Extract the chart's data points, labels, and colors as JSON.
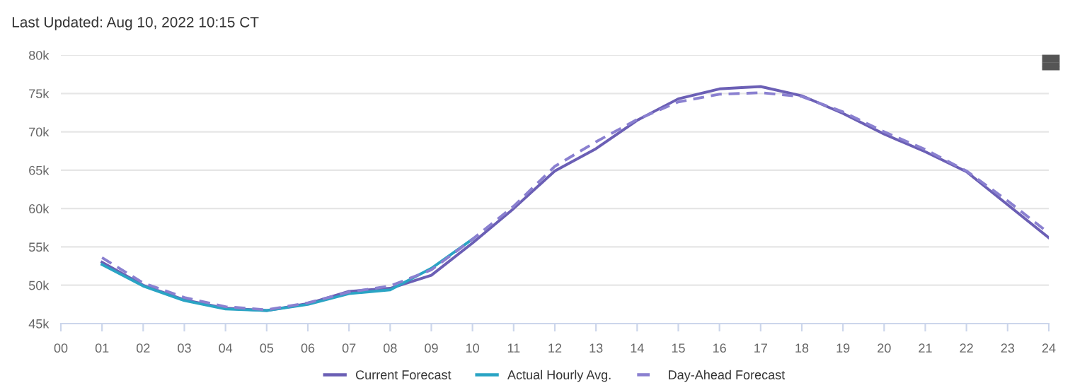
{
  "chart_data": {
    "type": "line",
    "title": "Last Updated: Aug 10, 2022 10:15 CT",
    "x": [
      1,
      2,
      3,
      4,
      5,
      6,
      7,
      8,
      9,
      10,
      11,
      12,
      13,
      14,
      15,
      16,
      17,
      18,
      19,
      20,
      21,
      22,
      23,
      24
    ],
    "series": [
      {
        "name": "Current Forecast",
        "color": "#6b5fb5",
        "line_style": "solid",
        "values": [
          53.0,
          50.0,
          48.1,
          47.0,
          46.7,
          47.6,
          49.2,
          49.6,
          51.3,
          55.5,
          60.0,
          64.9,
          67.8,
          71.5,
          74.3,
          75.6,
          75.9,
          74.7,
          72.4,
          69.7,
          67.4,
          64.8,
          60.5,
          56.2
        ]
      },
      {
        "name": "Actual Hourly Avg.",
        "color": "#2aa4c4",
        "line_style": "solid",
        "values": [
          52.7,
          49.9,
          48.0,
          46.9,
          46.7,
          47.5,
          48.9,
          49.4,
          52.2,
          56.0,
          null,
          null,
          null,
          null,
          null,
          null,
          null,
          null,
          null,
          null,
          null,
          null,
          null,
          null
        ]
      },
      {
        "name": "Day-Ahead Forecast",
        "color": "#8a80d0",
        "line_style": "dashed",
        "values": [
          53.6,
          50.3,
          48.4,
          47.2,
          46.8,
          47.7,
          49.1,
          49.9,
          52.0,
          56.0,
          60.3,
          65.5,
          68.7,
          71.6,
          73.9,
          74.9,
          75.1,
          74.6,
          72.6,
          70.0,
          67.7,
          64.9,
          61.0,
          56.8
        ]
      }
    ],
    "xlim": [
      0,
      24
    ],
    "xticks": [
      {
        "value": 0,
        "label": "00"
      },
      {
        "value": 1,
        "label": "01"
      },
      {
        "value": 2,
        "label": "02"
      },
      {
        "value": 3,
        "label": "03"
      },
      {
        "value": 4,
        "label": "04"
      },
      {
        "value": 5,
        "label": "05"
      },
      {
        "value": 6,
        "label": "06"
      },
      {
        "value": 7,
        "label": "07"
      },
      {
        "value": 8,
        "label": "08"
      },
      {
        "value": 9,
        "label": "09"
      },
      10,
      11,
      12,
      13,
      14,
      15,
      16,
      17,
      18,
      19,
      20,
      21,
      22,
      23,
      24
    ],
    "ylim": [
      45,
      80
    ],
    "yticks": [
      {
        "value": 45,
        "label": "45k"
      },
      {
        "value": 50,
        "label": "50k"
      },
      {
        "value": 55,
        "label": "55k"
      },
      {
        "value": 60,
        "label": "60k"
      },
      {
        "value": 65,
        "label": "65k"
      },
      {
        "value": 70,
        "label": "70k"
      },
      {
        "value": 75,
        "label": "75k"
      },
      {
        "value": 80,
        "label": "80k"
      }
    ],
    "grid": "y",
    "legend": "bottom"
  }
}
